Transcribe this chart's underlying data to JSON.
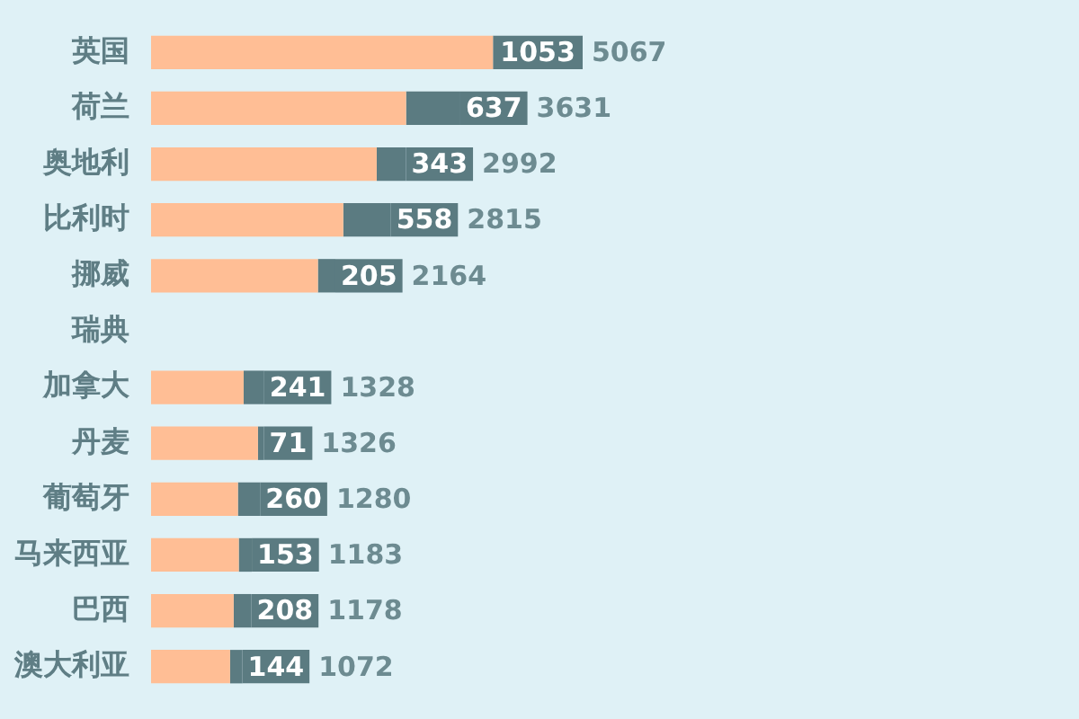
{
  "chart_data": {
    "type": "bar",
    "orientation": "horizontal",
    "stacked": true,
    "categories": [
      "英国",
      "荷兰",
      "奥地利",
      "比利时",
      "挪威",
      "瑞典",
      "加拿大",
      "丹麦",
      "葡萄牙",
      "马来西亚",
      "巴西",
      "澳大利亚"
    ],
    "series": [
      {
        "color": "#ffbe95",
        "values": [
          4014,
          2994,
          2649,
          2257,
          1959,
          null,
          1087,
          1255,
          1020,
          1030,
          970,
          928
        ]
      },
      {
        "color": "#5b7b81",
        "values": [
          1053,
          637,
          343,
          558,
          205,
          null,
          241,
          71,
          260,
          153,
          208,
          144
        ],
        "value_labels": [
          "1053",
          "637",
          "343",
          "558",
          "205",
          null,
          "241",
          "71",
          "260",
          "153",
          "208",
          "144"
        ]
      }
    ],
    "totals": [
      "5067",
      "3631",
      "2992",
      "2815",
      "2164",
      null,
      "1328",
      "1326",
      "1280",
      "1183",
      "1178",
      "1072"
    ],
    "tick_labels": "y"
  }
}
